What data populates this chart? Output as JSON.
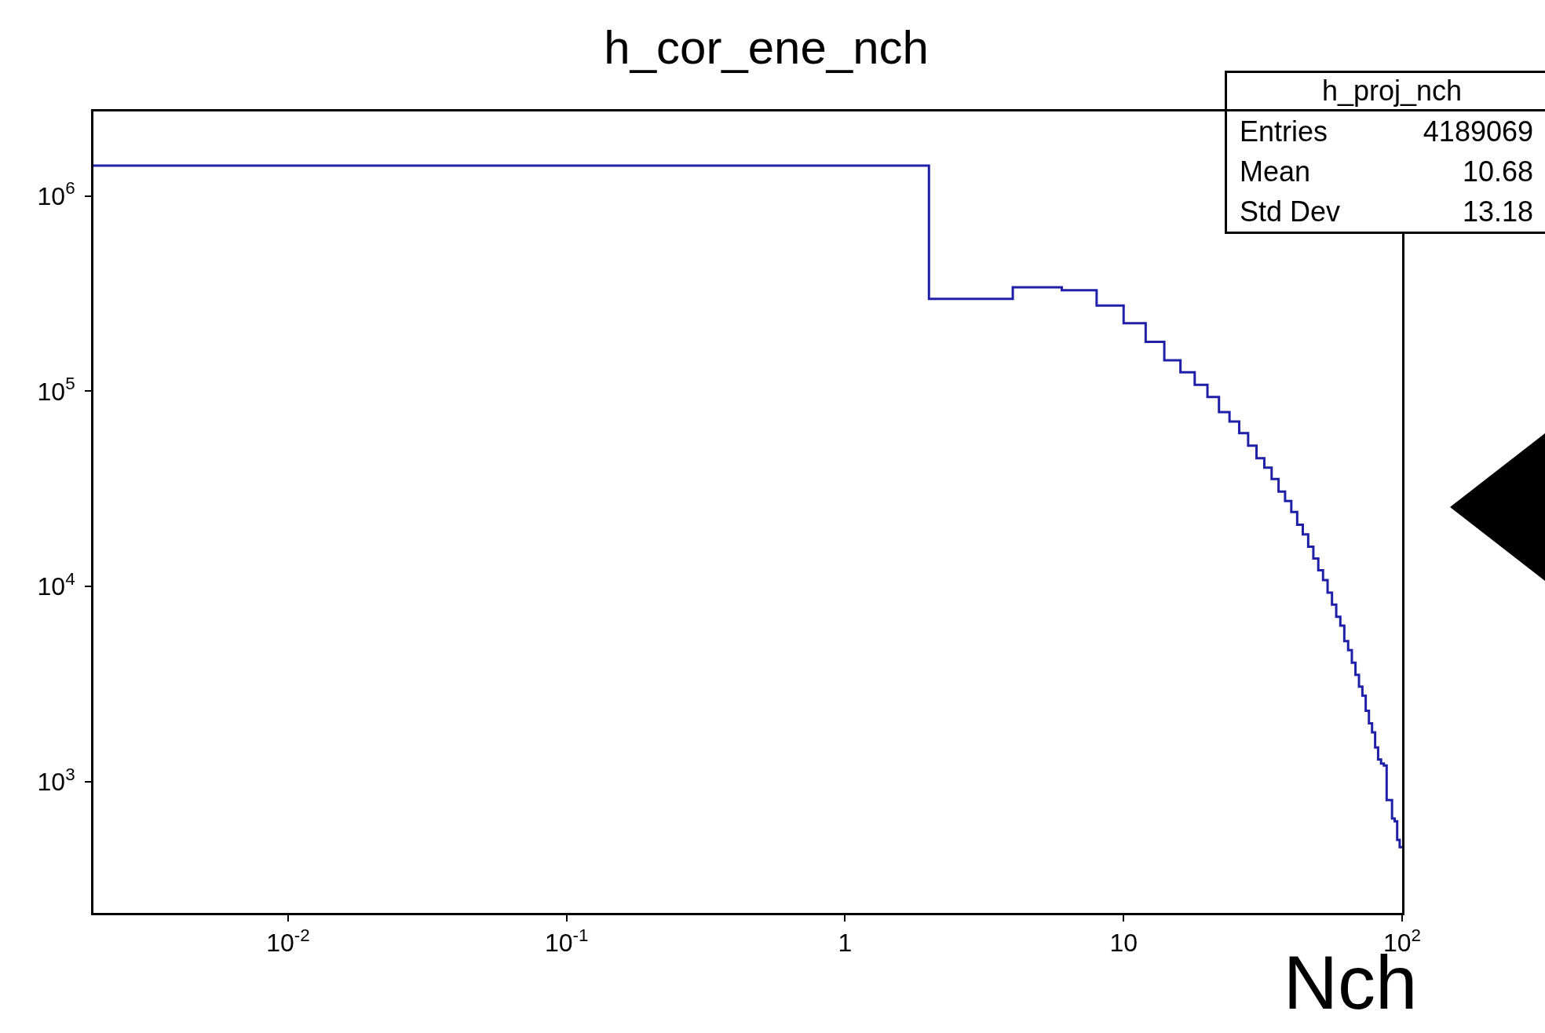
{
  "chart_data": {
    "type": "histogram",
    "title": "h_cor_ene_nch",
    "xlabel": "Nch",
    "annotations": [
      "h_proj_nch",
      "Entries",
      "4189069",
      "Mean",
      "10.68",
      "Std Dev",
      "13.18"
    ],
    "bins": [
      0.002,
      2,
      4,
      6,
      8,
      10,
      12,
      14,
      16,
      18,
      20,
      22,
      24,
      26,
      28,
      30,
      32,
      34,
      36,
      38,
      40,
      42,
      44,
      46,
      48,
      50,
      52,
      54,
      56,
      58,
      60,
      62,
      64,
      66,
      68,
      70,
      72,
      74,
      76,
      78,
      80,
      82,
      84,
      86,
      88,
      90,
      92,
      94,
      96,
      98,
      100
    ],
    "values": [
      1430000,
      297000,
      341000,
      329000,
      275000,
      223000,
      179000,
      144000,
      125000,
      108000,
      93500,
      78200,
      70000,
      61000,
      52700,
      45400,
      40600,
      35500,
      30600,
      27400,
      24100,
      20700,
      18500,
      16000,
      13900,
      12100,
      10800,
      9300,
      8070,
      7000,
      6310,
      5250,
      4720,
      4070,
      3530,
      3070,
      2760,
      2310,
      1990,
      1790,
      1500,
      1300,
      1240,
      1210,
      805,
      805,
      649,
      628,
      504,
      462
    ],
    "color": "#1f1fa8",
    "log": "xy",
    "grid": false,
    "xlim": [
      0.002,
      100
    ],
    "ylim": [
      213,
      2710000
    ],
    "xticks": [
      {
        "value": 0.01,
        "label": "10$^{-2}$"
      },
      {
        "value": 0.1,
        "label": "10$^{-1}$"
      },
      1,
      10,
      {
        "value": 100,
        "label": "10$^{2}$"
      }
    ],
    "yticks": [
      {
        "value": 1000,
        "label": "10$^{3}$"
      },
      {
        "value": 10000,
        "label": "10$^{4}$"
      },
      {
        "value": 100000,
        "label": "10$^{5}$"
      },
      {
        "value": 1000000,
        "label": "10$^{6}$"
      }
    ]
  }
}
